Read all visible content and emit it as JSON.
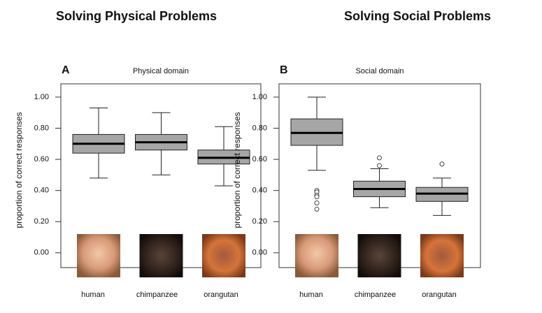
{
  "chart_data": [
    {
      "type": "box",
      "title": "Solving Physical Problems",
      "panel_label": "A",
      "subtitle": "Physical domain",
      "y_label": "proportion of correct responses",
      "categories": [
        "human",
        "chimpanzee",
        "orangutan"
      ],
      "whisker_low": [
        0.48,
        0.5,
        0.43
      ],
      "q1": [
        0.64,
        0.66,
        0.57
      ],
      "median": [
        0.7,
        0.71,
        0.61
      ],
      "q3": [
        0.76,
        0.76,
        0.66
      ],
      "whisker_high": [
        0.93,
        0.9,
        0.81
      ],
      "outliers": [
        [],
        [],
        []
      ],
      "color": "#a6a6a6",
      "ylim": [
        -0.095,
        1.085
      ],
      "yticks": [
        {
          "value": 0,
          "label": "0.00"
        },
        {
          "value": 0.2,
          "label": "0.20"
        },
        {
          "value": 0.4,
          "label": "0.40"
        },
        {
          "value": 0.6,
          "label": "0.60"
        },
        {
          "value": 0.8,
          "label": "0.80"
        },
        {
          "value": 1,
          "label": "1.00"
        }
      ]
    },
    {
      "type": "box",
      "title": "Solving Social Problems",
      "panel_label": "B",
      "subtitle": "Social domain",
      "y_label": "proportion of correct responses",
      "categories": [
        "human",
        "chimpanzee",
        "orangutan"
      ],
      "whisker_low": [
        0.53,
        0.29,
        0.24
      ],
      "q1": [
        0.69,
        0.36,
        0.33
      ],
      "median": [
        0.77,
        0.41,
        0.38
      ],
      "q3": [
        0.86,
        0.46,
        0.42
      ],
      "whisker_high": [
        1.0,
        0.54,
        0.48
      ],
      "outliers": [
        [
          0.4,
          0.39,
          0.37,
          0.36,
          0.32,
          0.28
        ],
        [
          0.56,
          0.61
        ],
        [
          0.57
        ]
      ],
      "color": "#a6a6a6",
      "ylim": [
        -0.095,
        1.085
      ],
      "yticks": [
        {
          "value": 0,
          "label": "0.00"
        },
        {
          "value": 0.2,
          "label": "0.20"
        },
        {
          "value": 0.4,
          "label": "0.40"
        },
        {
          "value": 0.6,
          "label": "0.60"
        },
        {
          "value": 0.8,
          "label": "0.80"
        },
        {
          "value": 1,
          "label": "1.00"
        }
      ]
    }
  ]
}
